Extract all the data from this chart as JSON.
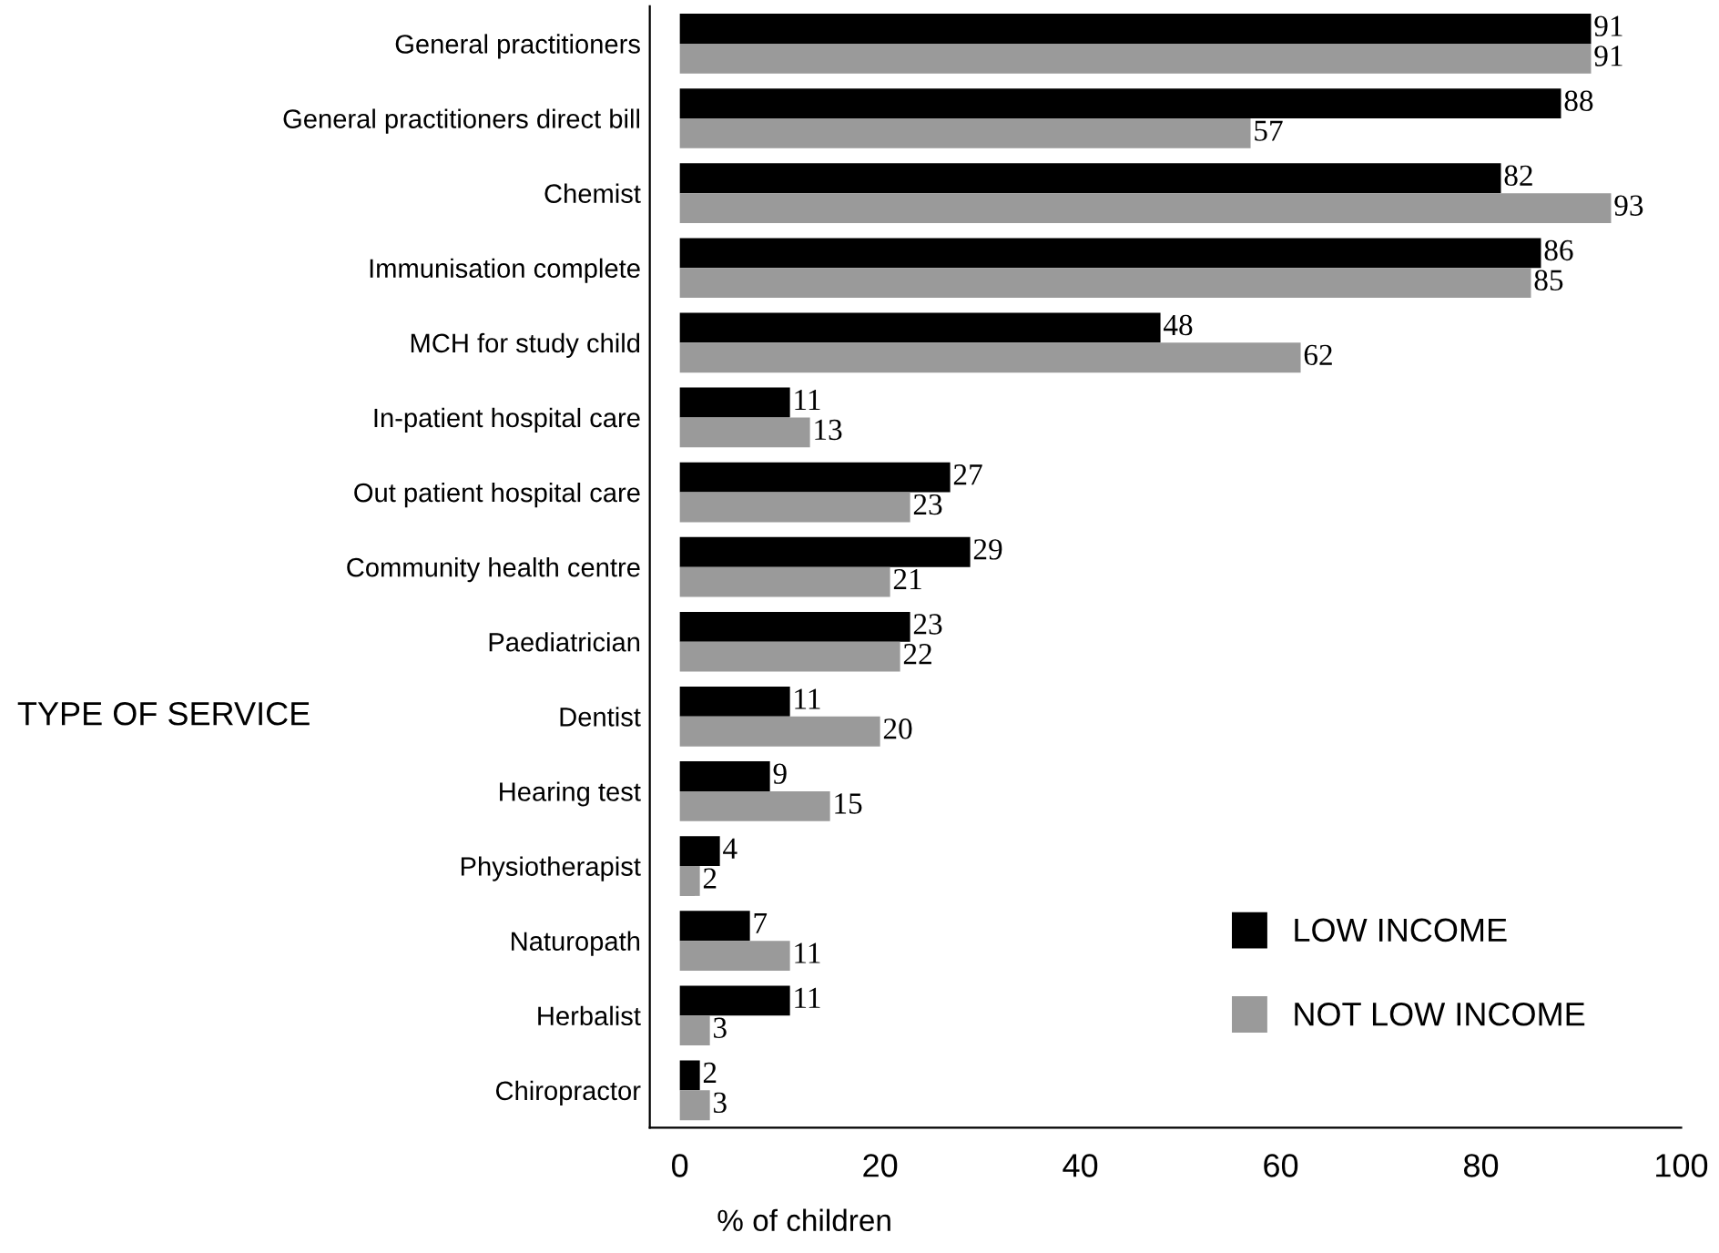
{
  "chart_data": {
    "type": "bar",
    "orientation": "horizontal",
    "xlabel": "% of children",
    "ylabel": "TYPE OF SERVICE",
    "categories": [
      "General practitioners",
      "General practitioners direct bill",
      "Chemist",
      "Immunisation complete",
      "MCH for study child",
      "In-patient hospital care",
      "Out patient hospital care",
      "Community health centre",
      "Paediatrician",
      "Dentist",
      "Hearing test",
      "Physiotherapist",
      "Naturopath",
      "Herbalist",
      "Chiropractor"
    ],
    "series": [
      {
        "name": "LOW INCOME",
        "color": "#000000",
        "values": [
          91,
          88,
          82,
          86,
          48,
          11,
          27,
          29,
          23,
          11,
          9,
          4,
          7,
          11,
          2
        ]
      },
      {
        "name": "NOT LOW INCOME",
        "color": "#9a9a9a",
        "values": [
          91,
          57,
          93,
          85,
          62,
          13,
          23,
          21,
          22,
          20,
          15,
          2,
          11,
          3,
          3
        ]
      }
    ],
    "xlim": [
      -3,
      100
    ],
    "xticks": [
      0,
      20,
      40,
      60,
      80,
      100
    ],
    "data_labels": true,
    "legend": "bottom right",
    "grid": false
  }
}
